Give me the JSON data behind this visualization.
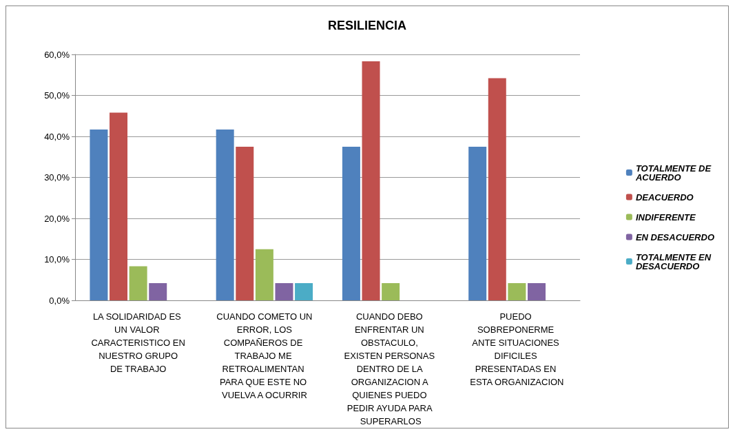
{
  "chart_data": {
    "type": "bar",
    "title": "RESILIENCIA",
    "categories": [
      "LA SOLIDARIDAD ES UN VALOR CARACTERISTICO EN NUESTRO GRUPO DE TRABAJO",
      "CUANDO COMETO UN ERROR, LOS COMPAÑEROS DE TRABAJO ME RETROALIMENTAN PARA QUE ESTE NO VUELVA A OCURRIR",
      "CUANDO DEBO ENFRENTAR UN OBSTACULO, EXISTEN PERSONAS DENTRO DE LA ORGANIZACION A QUIENES PUEDO PEDIR AYUDA PARA SUPERARLOS",
      "PUEDO SOBREPONERME ANTE SITUACIONES DIFICILES PRESENTADAS EN ESTA ORGANIZACION"
    ],
    "series": [
      {
        "name": "TOTALMENTE DE ACUERDO",
        "color": "#4f81bd",
        "values": [
          41.7,
          41.7,
          37.5,
          37.5
        ]
      },
      {
        "name": "DEACUERDO",
        "color": "#c0504d",
        "values": [
          45.8,
          37.5,
          58.3,
          54.2
        ]
      },
      {
        "name": "INDIFERENTE",
        "color": "#9bbb59",
        "values": [
          8.3,
          12.5,
          4.2,
          4.2
        ]
      },
      {
        "name": "EN DESACUERDO",
        "color": "#8064a2",
        "values": [
          4.2,
          4.2,
          0,
          4.2
        ]
      },
      {
        "name": "TOTALMENTE EN DESACUERDO",
        "color": "#4bacc6",
        "values": [
          0,
          4.2,
          0,
          0
        ]
      }
    ],
    "ylim": [
      0,
      60
    ],
    "yticks": [
      {
        "value": 0,
        "label": "0,0%"
      },
      {
        "value": 10,
        "label": "10,0%"
      },
      {
        "value": 20,
        "label": "20,0%"
      },
      {
        "value": 30,
        "label": "30,0%"
      },
      {
        "value": 40,
        "label": "40,0%"
      },
      {
        "value": 50,
        "label": "50,0%"
      },
      {
        "value": 60,
        "label": "60,0%"
      }
    ],
    "grid": "y",
    "legend": "right"
  }
}
